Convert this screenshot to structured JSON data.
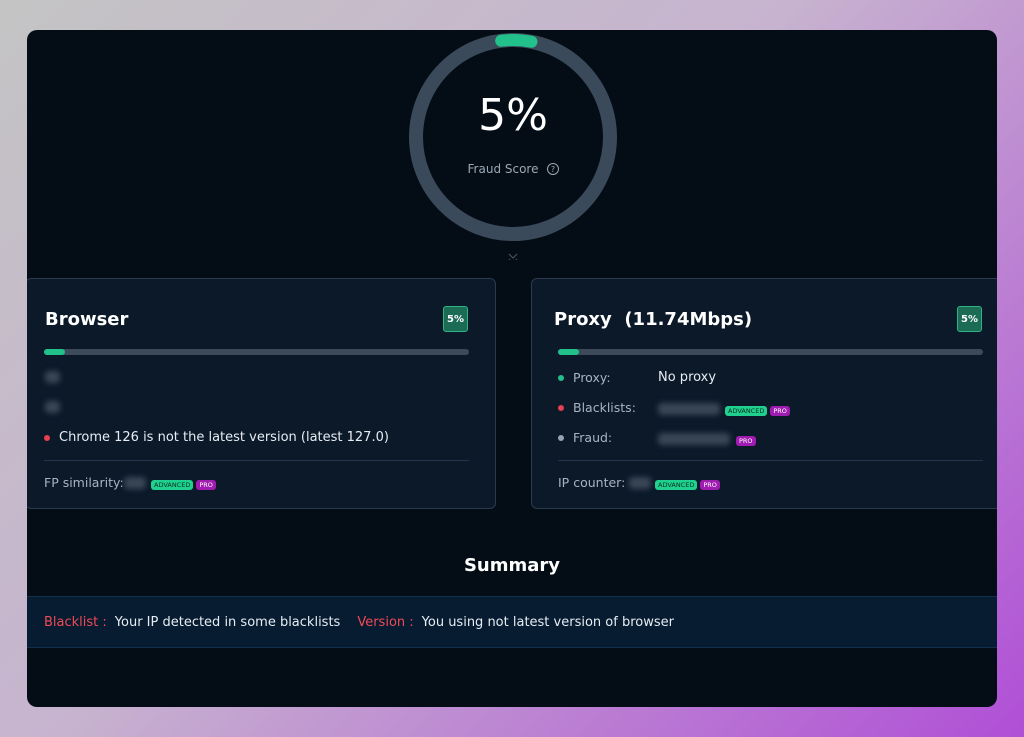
{
  "score": {
    "value": 5,
    "label": "5%"
  },
  "score_label": "Fraud Score",
  "cards": [
    {
      "title": "Browser",
      "badge": {
        "value": 5,
        "label": "5%"
      },
      "rows": [
        {
          "text": "Chrome 126 is not the latest version (latest 127.0)"
        }
      ],
      "footer": {
        "label": "FP similarity:",
        "tags": [
          "ADVANCED",
          "PRO"
        ]
      }
    },
    {
      "title": "Proxy  (11.74Mbps)",
      "badge": {
        "value": 5,
        "label": "5%"
      },
      "rows": [
        {
          "label": "Proxy:",
          "value": "No proxy"
        },
        {
          "label": "Blacklists:",
          "tags": [
            "ADVANCED",
            "PRO"
          ]
        },
        {
          "label": "Fraud:",
          "tags": [
            "PRO"
          ]
        }
      ],
      "footer": {
        "label": "IP counter:",
        "tags": [
          "ADVANCED",
          "PRO"
        ]
      }
    }
  ],
  "summary": {
    "title": "Summary",
    "items": [
      {
        "key": "Blacklist :",
        "text": "Your IP detected in some blacklists"
      },
      {
        "key": "Version :",
        "text": "You using not latest version of browser"
      }
    ]
  }
}
